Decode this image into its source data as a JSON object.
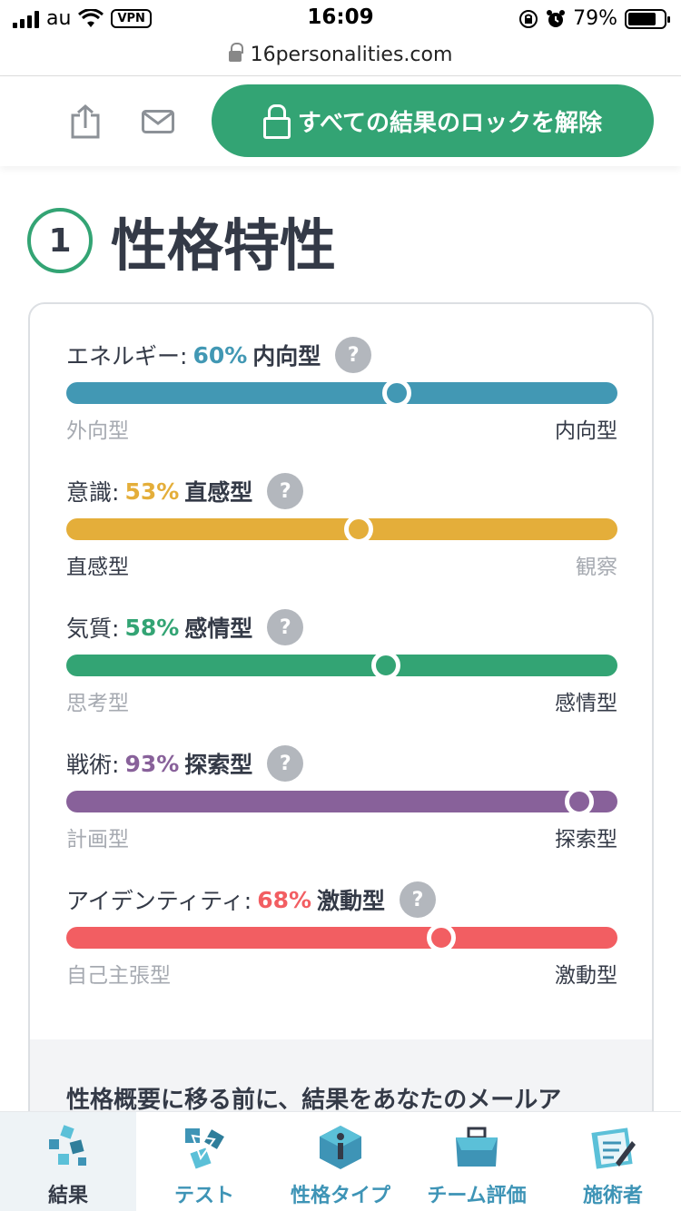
{
  "status_bar": {
    "carrier": "au",
    "vpn": "VPN",
    "time": "16:09",
    "battery": "79%",
    "battery_level": 0.79
  },
  "browser": {
    "url": "16personalities.com"
  },
  "toolbar": {
    "unlock_label": "すべての結果のロックを解除"
  },
  "section": {
    "number": "1",
    "title": "性格特性"
  },
  "traits": [
    {
      "label": "エネルギー:",
      "pct": "60%",
      "type": "内向型",
      "left": "外向型",
      "right": "内向型",
      "value": 60,
      "side": "right",
      "color": "#4298b4"
    },
    {
      "label": "意識:",
      "pct": "53%",
      "type": "直感型",
      "left": "直感型",
      "right": "観察",
      "value": 53,
      "side": "left",
      "color": "#e4ae3a"
    },
    {
      "label": "気質:",
      "pct": "58%",
      "type": "感情型",
      "left": "思考型",
      "right": "感情型",
      "value": 58,
      "side": "right",
      "color": "#33a474"
    },
    {
      "label": "戦術:",
      "pct": "93%",
      "type": "探索型",
      "left": "計画型",
      "right": "探索型",
      "value": 93,
      "side": "right",
      "color": "#88619a"
    },
    {
      "label": "アイデンティティ:",
      "pct": "68%",
      "type": "激動型",
      "left": "自己主張型",
      "right": "激動型",
      "value": 68,
      "side": "right",
      "color": "#f25e62"
    }
  ],
  "help_glyph": "?",
  "cta_text": "性格概要に移る前に、結果をあなたのメールア",
  "bottom_nav": [
    {
      "label": "結果",
      "icon": "results-icon"
    },
    {
      "label": "テスト",
      "icon": "test-icon"
    },
    {
      "label": "性格タイプ",
      "icon": "personality-types-icon"
    },
    {
      "label": "チーム評価",
      "icon": "team-assessment-icon"
    },
    {
      "label": "施術者",
      "icon": "practitioner-icon"
    }
  ]
}
